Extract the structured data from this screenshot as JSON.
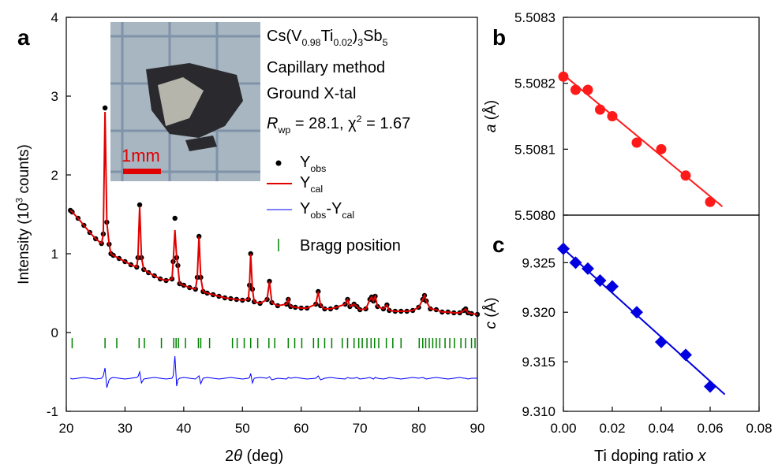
{
  "chart_data": [
    {
      "type": "line",
      "panel_label": "a",
      "xlabel": [
        "2",
        "θ",
        " (deg)"
      ],
      "ylabel": [
        "Intensity (10",
        "3",
        " counts)"
      ],
      "xlim": [
        20,
        90
      ],
      "xticks": [
        20,
        30,
        40,
        50,
        60,
        70,
        80,
        90
      ],
      "ylim": [
        -1,
        4
      ],
      "yticks": [
        -1,
        0,
        1,
        2,
        3,
        4
      ],
      "x": [
        20.7,
        21,
        22,
        23,
        24,
        25,
        26,
        26.3,
        26.6,
        26.9,
        27.3,
        27.6,
        28,
        29,
        30,
        31,
        32,
        32.2,
        32.5,
        32.8,
        33.2,
        34,
        35,
        36,
        37,
        38,
        38.2,
        38.5,
        38.8,
        39,
        39.3,
        40,
        41,
        42,
        42.3,
        42.6,
        42.9,
        43.3,
        44,
        45,
        46,
        47,
        48,
        49,
        50,
        51,
        51.2,
        51.4,
        51.7,
        52,
        53,
        54.2,
        54.6,
        55,
        56,
        57.5,
        57.8,
        58.2,
        59,
        60,
        61,
        62.5,
        62.9,
        63.3,
        64,
        65,
        66,
        67.5,
        67.9,
        68.3,
        69,
        69.5,
        70,
        71,
        71.7,
        72,
        72.3,
        72.6,
        73,
        74,
        74.6,
        75,
        76,
        77,
        78,
        79,
        80,
        80.7,
        81,
        81.3,
        82,
        83,
        84,
        85,
        86,
        87,
        87.7,
        88,
        88.4,
        89,
        90
      ],
      "series": [
        {
          "name": [
            "Y",
            "obs"
          ],
          "color": "#000000",
          "marker": "dot",
          "values": [
            1.55,
            1.53,
            1.45,
            1.36,
            1.27,
            1.19,
            1.13,
            1.25,
            2.85,
            1.4,
            1.12,
            1.0,
            0.98,
            0.94,
            0.9,
            0.86,
            0.83,
            0.95,
            1.62,
            0.95,
            0.8,
            0.76,
            0.72,
            0.68,
            0.66,
            0.68,
            0.9,
            1.45,
            0.95,
            0.85,
            0.62,
            0.6,
            0.57,
            0.55,
            0.7,
            1.22,
            0.7,
            0.52,
            0.5,
            0.48,
            0.46,
            0.44,
            0.43,
            0.42,
            0.41,
            0.42,
            0.6,
            1.0,
            0.55,
            0.39,
            0.37,
            0.42,
            0.65,
            0.38,
            0.34,
            0.36,
            0.42,
            0.33,
            0.32,
            0.31,
            0.31,
            0.36,
            0.52,
            0.34,
            0.3,
            0.3,
            0.32,
            0.36,
            0.42,
            0.33,
            0.36,
            0.33,
            0.29,
            0.3,
            0.42,
            0.45,
            0.4,
            0.46,
            0.33,
            0.3,
            0.35,
            0.28,
            0.27,
            0.27,
            0.27,
            0.28,
            0.32,
            0.42,
            0.47,
            0.4,
            0.3,
            0.29,
            0.26,
            0.26,
            0.25,
            0.25,
            0.28,
            0.3,
            0.25,
            0.24,
            0.23
          ]
        },
        {
          "name": [
            "Y",
            "cal"
          ],
          "color": "#e00000",
          "marker": "line",
          "values": [
            1.55,
            1.53,
            1.45,
            1.36,
            1.27,
            1.19,
            1.13,
            1.25,
            2.8,
            1.4,
            1.12,
            1.0,
            0.98,
            0.94,
            0.9,
            0.86,
            0.83,
            0.95,
            1.6,
            0.95,
            0.8,
            0.76,
            0.72,
            0.68,
            0.66,
            0.68,
            0.9,
            1.3,
            0.95,
            0.85,
            0.62,
            0.6,
            0.57,
            0.55,
            0.7,
            1.22,
            0.7,
            0.52,
            0.5,
            0.48,
            0.46,
            0.44,
            0.43,
            0.42,
            0.41,
            0.42,
            0.6,
            1.0,
            0.55,
            0.39,
            0.37,
            0.42,
            0.65,
            0.38,
            0.34,
            0.36,
            0.42,
            0.33,
            0.32,
            0.31,
            0.31,
            0.36,
            0.52,
            0.34,
            0.3,
            0.3,
            0.32,
            0.36,
            0.42,
            0.33,
            0.36,
            0.33,
            0.29,
            0.3,
            0.42,
            0.45,
            0.4,
            0.46,
            0.33,
            0.3,
            0.35,
            0.28,
            0.27,
            0.27,
            0.27,
            0.28,
            0.32,
            0.42,
            0.47,
            0.4,
            0.3,
            0.29,
            0.26,
            0.26,
            0.25,
            0.25,
            0.28,
            0.3,
            0.25,
            0.24,
            0.23
          ]
        },
        {
          "name": [
            "Y",
            "obs",
            "-Y",
            "cal"
          ],
          "color": "#0000ff",
          "marker": "thin-line",
          "values": [
            -0.58,
            -0.59,
            -0.58,
            -0.57,
            -0.58,
            -0.59,
            -0.58,
            -0.55,
            -0.45,
            -0.7,
            -0.6,
            -0.58,
            -0.57,
            -0.58,
            -0.59,
            -0.58,
            -0.57,
            -0.56,
            -0.5,
            -0.64,
            -0.59,
            -0.58,
            -0.57,
            -0.58,
            -0.59,
            -0.58,
            -0.55,
            -0.3,
            -0.68,
            -0.6,
            -0.58,
            -0.57,
            -0.58,
            -0.59,
            -0.57,
            -0.55,
            -0.65,
            -0.58,
            -0.57,
            -0.58,
            -0.59,
            -0.58,
            -0.57,
            -0.58,
            -0.59,
            -0.58,
            -0.57,
            -0.52,
            -0.64,
            -0.58,
            -0.57,
            -0.58,
            -0.56,
            -0.6,
            -0.58,
            -0.59,
            -0.57,
            -0.58,
            -0.57,
            -0.58,
            -0.59,
            -0.58,
            -0.55,
            -0.6,
            -0.58,
            -0.57,
            -0.58,
            -0.59,
            -0.57,
            -0.58,
            -0.58,
            -0.57,
            -0.59,
            -0.58,
            -0.57,
            -0.58,
            -0.59,
            -0.57,
            -0.58,
            -0.59,
            -0.58,
            -0.57,
            -0.58,
            -0.59,
            -0.58,
            -0.57,
            -0.58,
            -0.57,
            -0.58,
            -0.59,
            -0.58,
            -0.57,
            -0.58,
            -0.59,
            -0.58,
            -0.57,
            -0.58,
            -0.58,
            -0.59,
            -0.58,
            -0.58
          ]
        }
      ],
      "bragg": {
        "name": "Bragg position",
        "color": "#008000",
        "x": [
          21,
          26.6,
          28.6,
          32.4,
          33.3,
          36.2,
          38.3,
          38.7,
          39.1,
          40.3,
          42.5,
          42.9,
          44.4,
          48.3,
          49.1,
          50.3,
          51.4,
          52.6,
          54.5,
          55.5,
          57.8,
          58.9,
          60.1,
          62.1,
          62.9,
          64.0,
          65.2,
          67.0,
          67.9,
          69.0,
          69.8,
          70.4,
          71.2,
          71.9,
          72.5,
          73.2,
          74.5,
          75.6,
          77.0,
          80.1,
          80.7,
          81.2,
          81.8,
          82.4,
          83.0,
          83.6,
          84.5,
          85.3,
          86.1,
          87.2,
          88.0,
          89.0,
          89.6
        ]
      },
      "annotations": {
        "formula": [
          "Cs(V",
          "0.98",
          "Ti",
          "0.02",
          ")",
          "3",
          "Sb",
          "5"
        ],
        "lines": [
          "Capillary method",
          "Ground X-tal"
        ],
        "fit_stats": [
          "R",
          "wp",
          " = 28.1, χ",
          "2",
          " = 1.67"
        ]
      },
      "inset_scale": "1mm"
    },
    {
      "type": "scatter",
      "panel_label": "b",
      "ylabel": [
        "a",
        " (Å)"
      ],
      "xlim": [
        0,
        0.08
      ],
      "ylim": [
        5.508,
        5.5083
      ],
      "yticks": [
        {
          "value": 5.508,
          "label": "5.5080"
        },
        5.5081,
        5.5082,
        5.5083
      ],
      "points": {
        "marker": "circle",
        "color": "#ff1a1a",
        "x": [
          0,
          0.005,
          0.01,
          0.015,
          0.02,
          0.03,
          0.04,
          0.05,
          0.06
        ],
        "values": [
          5.50821,
          5.50819,
          5.50819,
          5.50816,
          5.50815,
          5.50811,
          5.5081,
          5.50806,
          5.50802
        ]
      },
      "fit": {
        "color": "#ff1a1a",
        "x": [
          0,
          0.065
        ],
        "values": [
          5.508213,
          5.508013
        ]
      }
    },
    {
      "type": "scatter",
      "panel_label": "c",
      "ylabel": [
        "c",
        " (Å)"
      ],
      "xlabel": [
        "Ti doping ratio ",
        "x"
      ],
      "xlim": [
        0,
        0.08
      ],
      "xticks": [
        {
          "value": 0,
          "label": "0.00"
        },
        {
          "value": 0.02,
          "label": "0.02"
        },
        {
          "value": 0.04,
          "label": "0.04"
        },
        {
          "value": 0.06,
          "label": "0.06"
        },
        {
          "value": 0.08,
          "label": "0.08"
        }
      ],
      "ylim": [
        9.31,
        9.3298
      ],
      "yticks": [
        {
          "value": 9.31,
          "label": "9.310"
        },
        9.315,
        {
          "value": 9.32,
          "label": "9.320"
        },
        9.325
      ],
      "points": {
        "marker": "diamond",
        "color": "#0000e0",
        "x": [
          0,
          0.005,
          0.01,
          0.015,
          0.02,
          0.03,
          0.04,
          0.05,
          0.06
        ],
        "values": [
          9.3264,
          9.325,
          9.3244,
          9.3232,
          9.3226,
          9.32,
          9.317,
          9.3157,
          9.3125
        ]
      },
      "fit": {
        "color": "#0000e0",
        "x": [
          0,
          0.066
        ],
        "values": [
          9.3264,
          9.3117
        ]
      }
    }
  ]
}
